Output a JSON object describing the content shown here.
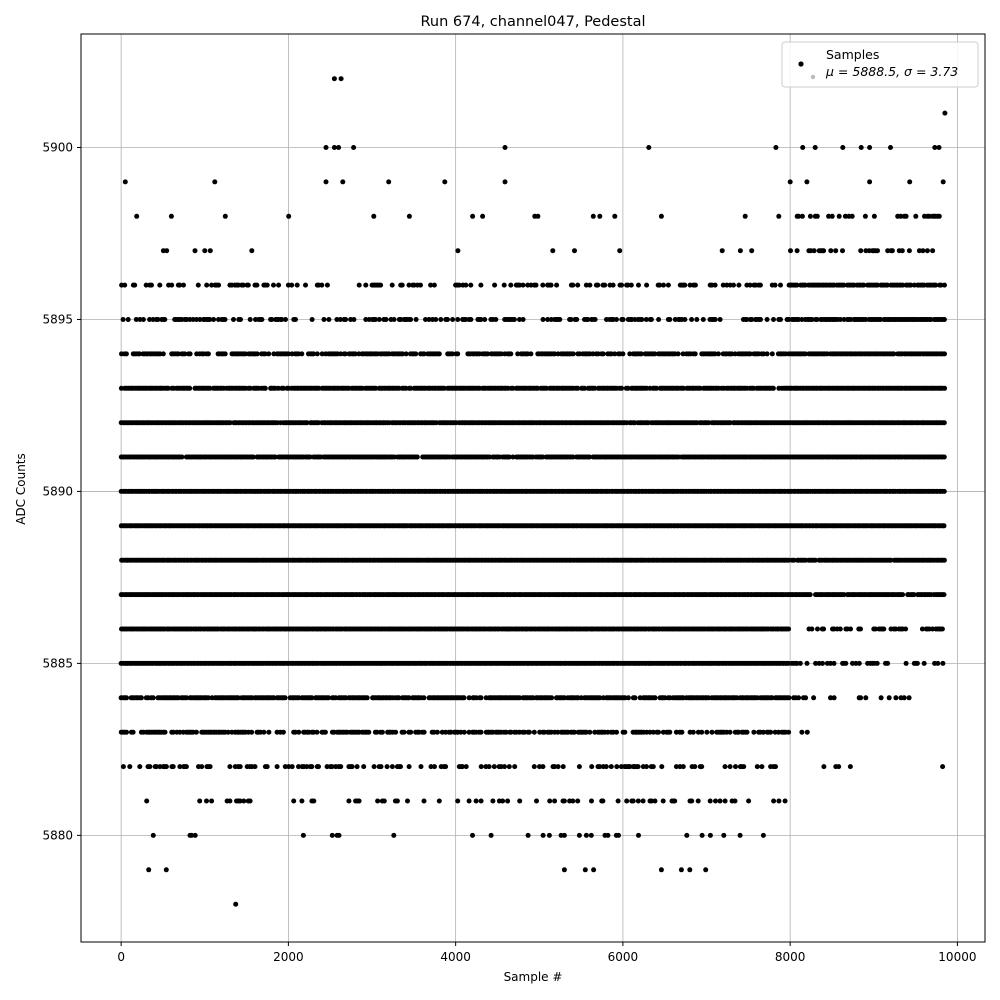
{
  "chart_data": {
    "type": "scatter",
    "title": "Run 674, channel047, Pedestal",
    "xlabel": "Sample #",
    "ylabel": "ADC Counts",
    "xlim": [
      -480,
      10330
    ],
    "ylim": [
      5876.9,
      5903.3
    ],
    "xticks": [
      0,
      2000,
      4000,
      6000,
      8000,
      10000
    ],
    "xtick_labels": [
      "0",
      "2000",
      "4000",
      "6000",
      "8000",
      "10000"
    ],
    "yticks": [
      5880,
      5885,
      5890,
      5895,
      5900
    ],
    "ytick_labels": [
      "5880",
      "5885",
      "5890",
      "5895",
      "5900"
    ],
    "grid": true,
    "legend": {
      "placement": "top-right",
      "line1": "Samples",
      "line2": "μ = 5888.5, σ = 3.73"
    },
    "series": [
      {
        "name": "Samples",
        "color": "#000000",
        "n_points": 9850,
        "x_range": [
          0,
          9850
        ],
        "mean": 5888.5,
        "std": 3.73,
        "outliers": [
          {
            "x": 2550,
            "y": 5902
          },
          {
            "x": 2630,
            "y": 5902
          },
          {
            "x": 9850,
            "y": 5901
          },
          {
            "x": 1370,
            "y": 5878
          },
          {
            "x": 330,
            "y": 5879
          },
          {
            "x": 540,
            "y": 5879
          },
          {
            "x": 5300,
            "y": 5879
          },
          {
            "x": 5550,
            "y": 5879
          },
          {
            "x": 5650,
            "y": 5879
          },
          {
            "x": 6460,
            "y": 5879
          },
          {
            "x": 6700,
            "y": 5879
          },
          {
            "x": 6800,
            "y": 5879
          },
          {
            "x": 6990,
            "y": 5879
          },
          {
            "x": 2450,
            "y": 5900
          },
          {
            "x": 2550,
            "y": 5900
          },
          {
            "x": 2600,
            "y": 5900
          },
          {
            "x": 2780,
            "y": 5900
          },
          {
            "x": 4590,
            "y": 5900
          },
          {
            "x": 6310,
            "y": 5900
          },
          {
            "x": 7830,
            "y": 5900
          },
          {
            "x": 8150,
            "y": 5900
          },
          {
            "x": 8300,
            "y": 5900
          },
          {
            "x": 8630,
            "y": 5900
          },
          {
            "x": 8850,
            "y": 5900
          },
          {
            "x": 8950,
            "y": 5900
          },
          {
            "x": 9200,
            "y": 5900
          },
          {
            "x": 9730,
            "y": 5900
          },
          {
            "x": 9780,
            "y": 5900
          },
          {
            "x": 50,
            "y": 5899
          },
          {
            "x": 1120,
            "y": 5899
          },
          {
            "x": 2450,
            "y": 5899
          },
          {
            "x": 2650,
            "y": 5899
          },
          {
            "x": 3200,
            "y": 5899
          },
          {
            "x": 3870,
            "y": 5899
          },
          {
            "x": 4590,
            "y": 5899
          },
          {
            "x": 8000,
            "y": 5899
          },
          {
            "x": 8200,
            "y": 5899
          },
          {
            "x": 8950,
            "y": 5899
          },
          {
            "x": 9430,
            "y": 5899
          },
          {
            "x": 9830,
            "y": 5899
          }
        ],
        "level_density": [
          {
            "y": 5898,
            "density": 0.04,
            "late_density": 0.18
          },
          {
            "y": 5897,
            "density": 0.05,
            "late_density": 0.35
          },
          {
            "y": 5896,
            "density": 0.35,
            "late_density": 0.85
          },
          {
            "y": 5895,
            "density": 0.45,
            "late_density": 0.85
          },
          {
            "y": 5894,
            "density": 0.7,
            "late_density": 0.95
          },
          {
            "y": 5893,
            "density": 0.9,
            "late_density": 1.0
          },
          {
            "y": 5892,
            "density": 0.95,
            "late_density": 1.0
          },
          {
            "y": 5891,
            "density": 0.95,
            "late_density": 1.0
          },
          {
            "y": 5890,
            "density": 1.0,
            "late_density": 1.0
          },
          {
            "y": 5889,
            "density": 1.0,
            "late_density": 1.0
          },
          {
            "y": 5888,
            "density": 1.0,
            "late_density": 0.95
          },
          {
            "y": 5887,
            "density": 1.0,
            "late_density": 0.9
          },
          {
            "y": 5886,
            "density": 1.0,
            "late_density": 0.45
          },
          {
            "y": 5885,
            "density": 1.0,
            "late_density": 0.35
          },
          {
            "y": 5884,
            "density": 0.85,
            "late_density": 0.12
          },
          {
            "y": 5883,
            "density": 0.6,
            "late_density": 0.05
          },
          {
            "y": 5882,
            "density": 0.35,
            "late_density": 0.03
          },
          {
            "y": 5881,
            "density": 0.15,
            "late_density": 0.0
          },
          {
            "y": 5880,
            "density": 0.07,
            "late_density": 0.0
          }
        ],
        "late_start_x": 8000
      }
    ]
  }
}
